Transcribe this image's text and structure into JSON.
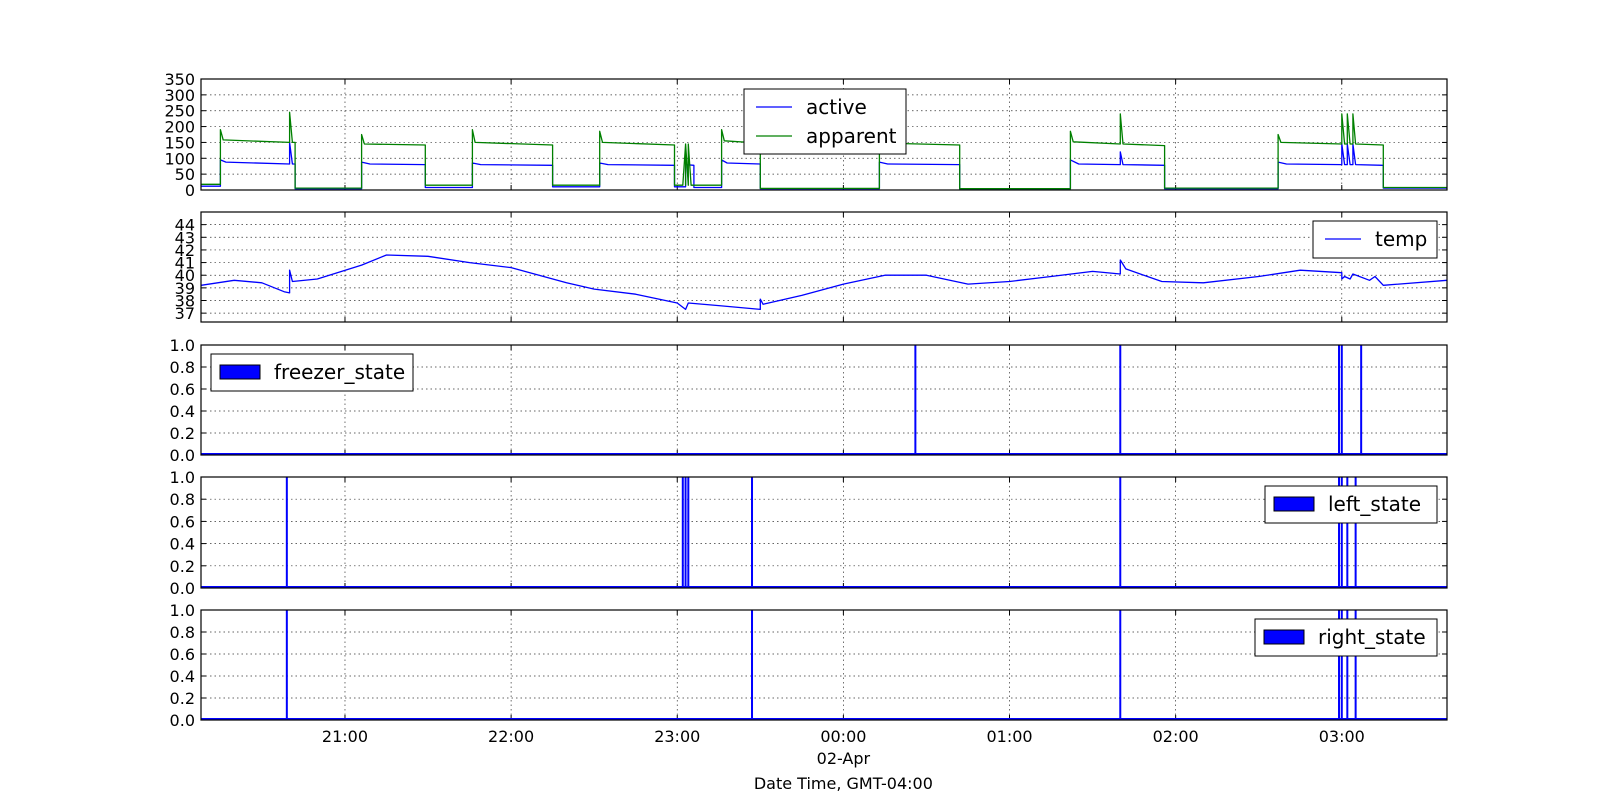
{
  "figure": {
    "xlabel": "Date Time, GMT-04:00",
    "x_start": "20:08",
    "x_end": "03:38",
    "x_ticks": [
      "21:00",
      "22:00",
      "23:00",
      "00:00",
      "01:00",
      "02:00",
      "03:00"
    ],
    "x_tick_times": [
      "20:00+60",
      "22:00",
      "23:00",
      "24:00",
      "25:00",
      "26:00",
      "27:00"
    ],
    "date_label": "02-Apr",
    "date_label_at": "00:00",
    "grid": true,
    "colors": {
      "blue": "#0000ff",
      "green": "#008000"
    }
  },
  "chart_data": [
    {
      "id": "power",
      "type": "line",
      "ylim": [
        0,
        350
      ],
      "yticks": [
        "0",
        "50",
        "100",
        "150",
        "200",
        "250",
        "300",
        "350"
      ],
      "legend_position": "top-center",
      "series": [
        {
          "name": "active",
          "color": "#0000ff",
          "points": [
            [
              "20:08",
              12
            ],
            [
              "20:15",
              12
            ],
            [
              "20:15",
              95
            ],
            [
              "20:17",
              88
            ],
            [
              "20:40",
              82
            ],
            [
              "20:40",
              150
            ],
            [
              "20:41",
              82
            ],
            [
              "20:42",
              82
            ],
            [
              "20:42",
              4
            ],
            [
              "21:06",
              4
            ],
            [
              "21:06",
              88
            ],
            [
              "21:09",
              82
            ],
            [
              "21:29",
              80
            ],
            [
              "21:29",
              8
            ],
            [
              "21:46",
              8
            ],
            [
              "21:46",
              85
            ],
            [
              "21:49",
              80
            ],
            [
              "22:15",
              78
            ],
            [
              "22:15",
              10
            ],
            [
              "22:32",
              10
            ],
            [
              "22:32",
              85
            ],
            [
              "22:35",
              80
            ],
            [
              "22:59",
              78
            ],
            [
              "22:59",
              10
            ],
            [
              "23:03",
              10
            ],
            [
              "23:03",
              80
            ],
            [
              "23:06",
              78
            ],
            [
              "23:06",
              8
            ],
            [
              "23:16",
              8
            ],
            [
              "23:16",
              95
            ],
            [
              "23:18",
              85
            ],
            [
              "23:30",
              82
            ],
            [
              "23:30",
              4
            ],
            [
              "00:13",
              4
            ],
            [
              "00:13",
              88
            ],
            [
              "00:16",
              82
            ],
            [
              "00:42",
              80
            ],
            [
              "00:42",
              4
            ],
            [
              "01:22",
              4
            ],
            [
              "01:22",
              95
            ],
            [
              "01:25",
              82
            ],
            [
              "01:40",
              80
            ],
            [
              "01:40",
              120
            ],
            [
              "01:41",
              80
            ],
            [
              "01:56",
              78
            ],
            [
              "01:56",
              4
            ],
            [
              "02:37",
              4
            ],
            [
              "02:37",
              88
            ],
            [
              "02:40",
              82
            ],
            [
              "03:00",
              80
            ],
            [
              "03:00",
              145
            ],
            [
              "03:01",
              80
            ],
            [
              "03:02",
              80
            ],
            [
              "03:02",
              145
            ],
            [
              "03:03",
              80
            ],
            [
              "03:04",
              80
            ],
            [
              "03:04",
              145
            ],
            [
              "03:05",
              80
            ],
            [
              "03:15",
              78
            ],
            [
              "03:15",
              6
            ],
            [
              "03:38",
              6
            ]
          ]
        },
        {
          "name": "apparent",
          "color": "#008000",
          "points": [
            [
              "20:08",
              18
            ],
            [
              "20:15",
              18
            ],
            [
              "20:15",
              190
            ],
            [
              "20:16",
              158
            ],
            [
              "20:40",
              150
            ],
            [
              "20:40",
              245
            ],
            [
              "20:41",
              150
            ],
            [
              "20:42",
              150
            ],
            [
              "20:42",
              6
            ],
            [
              "21:06",
              6
            ],
            [
              "21:06",
              175
            ],
            [
              "21:07",
              145
            ],
            [
              "21:29",
              142
            ],
            [
              "21:29",
              15
            ],
            [
              "21:46",
              15
            ],
            [
              "21:46",
              190
            ],
            [
              "21:47",
              150
            ],
            [
              "22:15",
              142
            ],
            [
              "22:15",
              15
            ],
            [
              "22:32",
              15
            ],
            [
              "22:32",
              185
            ],
            [
              "22:33",
              150
            ],
            [
              "22:59",
              142
            ],
            [
              "22:59",
              15
            ],
            [
              "23:02",
              15
            ],
            [
              "23:03",
              145
            ],
            [
              "23:03",
              15
            ],
            [
              "23:03",
              145
            ],
            [
              "23:04",
              15
            ],
            [
              "23:04",
              145
            ],
            [
              "23:05",
              15
            ],
            [
              "23:16",
              15
            ],
            [
              "23:16",
              190
            ],
            [
              "23:17",
              155
            ],
            [
              "23:30",
              148
            ],
            [
              "23:30",
              5
            ],
            [
              "00:13",
              5
            ],
            [
              "00:13",
              185
            ],
            [
              "00:14",
              148
            ],
            [
              "00:42",
              142
            ],
            [
              "00:42",
              4
            ],
            [
              "01:22",
              4
            ],
            [
              "01:22",
              185
            ],
            [
              "01:23",
              152
            ],
            [
              "01:40",
              145
            ],
            [
              "01:40",
              240
            ],
            [
              "01:41",
              145
            ],
            [
              "01:56",
              140
            ],
            [
              "01:56",
              6
            ],
            [
              "02:37",
              6
            ],
            [
              "02:37",
              175
            ],
            [
              "02:38",
              150
            ],
            [
              "03:00",
              145
            ],
            [
              "03:00",
              240
            ],
            [
              "03:01",
              145
            ],
            [
              "03:02",
              145
            ],
            [
              "03:02",
              240
            ],
            [
              "03:03",
              145
            ],
            [
              "03:04",
              145
            ],
            [
              "03:04",
              240
            ],
            [
              "03:05",
              145
            ],
            [
              "03:15",
              142
            ],
            [
              "03:15",
              8
            ],
            [
              "03:38",
              8
            ]
          ]
        }
      ]
    },
    {
      "id": "temperature",
      "type": "line",
      "ylim": [
        36.3,
        45
      ],
      "yticks": [
        "37",
        "38",
        "39",
        "40",
        "41",
        "42",
        "43",
        "44"
      ],
      "legend_position": "top-right",
      "series": [
        {
          "name": "temp",
          "color": "#0000ff",
          "points": [
            [
              "20:08",
              39.2
            ],
            [
              "20:20",
              39.6
            ],
            [
              "20:30",
              39.4
            ],
            [
              "20:38",
              38.7
            ],
            [
              "20:40",
              38.6
            ],
            [
              "20:40",
              40.4
            ],
            [
              "20:41",
              39.5
            ],
            [
              "20:50",
              39.7
            ],
            [
              "21:06",
              40.8
            ],
            [
              "21:15",
              41.6
            ],
            [
              "21:30",
              41.5
            ],
            [
              "21:45",
              41.0
            ],
            [
              "22:00",
              40.6
            ],
            [
              "22:20",
              39.4
            ],
            [
              "22:30",
              38.9
            ],
            [
              "22:45",
              38.5
            ],
            [
              "23:00",
              37.8
            ],
            [
              "23:03",
              37.3
            ],
            [
              "23:04",
              37.8
            ],
            [
              "23:15",
              37.6
            ],
            [
              "23:30",
              37.3
            ],
            [
              "23:30",
              38.1
            ],
            [
              "23:31",
              37.7
            ],
            [
              "23:45",
              38.4
            ],
            [
              "24:00",
              39.3
            ],
            [
              "24:15",
              40.0
            ],
            [
              "24:30",
              40.0
            ],
            [
              "24:45",
              39.3
            ],
            [
              "25:00",
              39.5
            ],
            [
              "25:15",
              39.9
            ],
            [
              "25:30",
              40.3
            ],
            [
              "25:40",
              40.1
            ],
            [
              "25:40",
              41.2
            ],
            [
              "25:42",
              40.5
            ],
            [
              "25:55",
              39.5
            ],
            [
              "26:10",
              39.4
            ],
            [
              "26:30",
              39.9
            ],
            [
              "26:45",
              40.4
            ],
            [
              "27:00",
              40.2
            ],
            [
              "27:00",
              39.7
            ],
            [
              "27:01",
              39.9
            ],
            [
              "27:03",
              39.7
            ],
            [
              "27:04",
              40.1
            ],
            [
              "27:10",
              39.6
            ],
            [
              "27:12",
              39.9
            ],
            [
              "27:15",
              39.2
            ],
            [
              "27:38",
              39.6
            ]
          ]
        }
      ]
    },
    {
      "id": "freezer_state",
      "type": "bar",
      "ylim": [
        0,
        1
      ],
      "yticks": [
        "0.0",
        "0.2",
        "0.4",
        "0.6",
        "0.8",
        "1.0"
      ],
      "legend_position": "top-left",
      "series": [
        {
          "name": "freezer_state",
          "color": "#0000ff",
          "on_times": [
            "24:26",
            "25:40",
            "26:59",
            "27:00",
            "27:07"
          ]
        }
      ]
    },
    {
      "id": "left_state",
      "type": "bar",
      "ylim": [
        0,
        1
      ],
      "yticks": [
        "0.0",
        "0.2",
        "0.4",
        "0.6",
        "0.8",
        "1.0"
      ],
      "legend_position": "top-right",
      "series": [
        {
          "name": "left_state",
          "color": "#0000ff",
          "on_times": [
            "20:39",
            "23:02",
            "23:03",
            "23:04",
            "23:27",
            "25:40",
            "26:59",
            "27:00",
            "27:02",
            "27:05"
          ]
        }
      ]
    },
    {
      "id": "right_state",
      "type": "bar",
      "ylim": [
        0,
        1
      ],
      "yticks": [
        "0.0",
        "0.2",
        "0.4",
        "0.6",
        "0.8",
        "1.0"
      ],
      "legend_position": "top-right",
      "series": [
        {
          "name": "right_state",
          "color": "#0000ff",
          "on_times": [
            "20:39",
            "23:27",
            "25:40",
            "26:59",
            "27:00",
            "27:02",
            "27:05"
          ]
        }
      ]
    }
  ]
}
